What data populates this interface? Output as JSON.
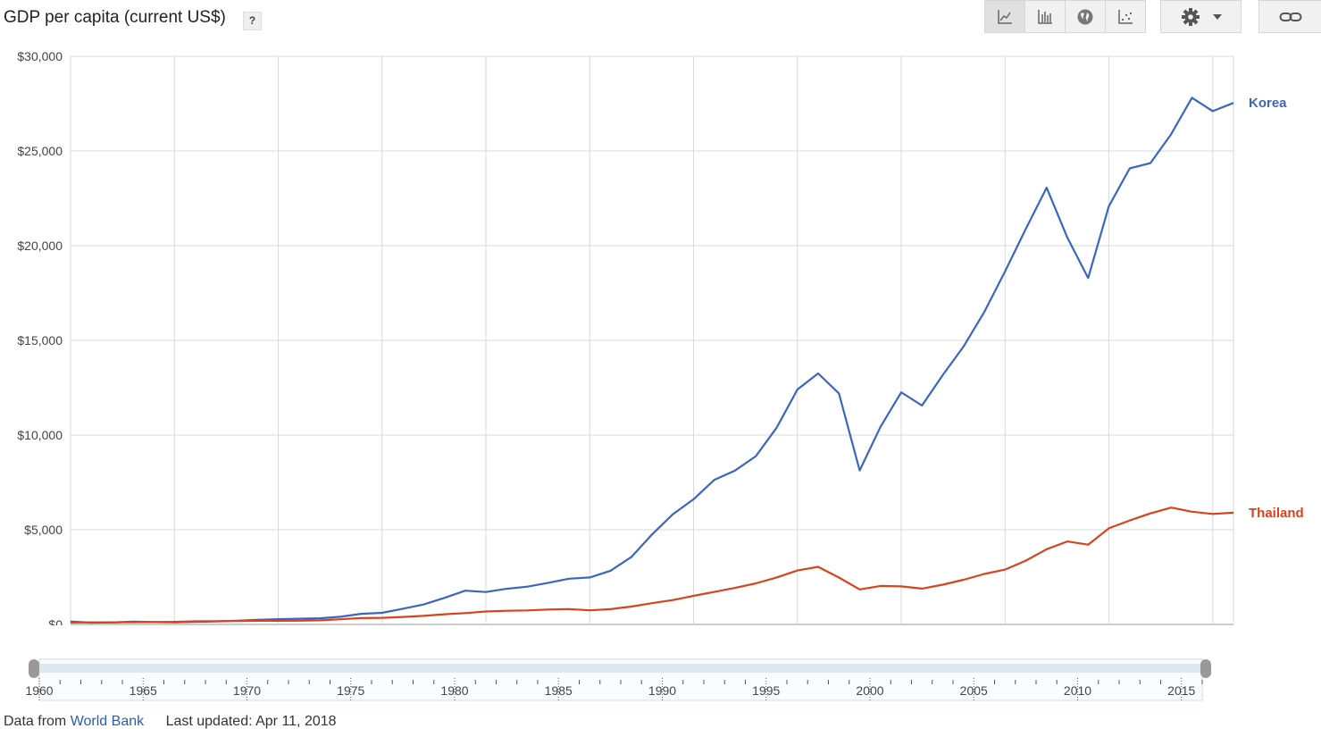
{
  "header": {
    "title": "GDP per capita (current US$)",
    "help": "?"
  },
  "toolbar": {
    "chart_type_buttons": [
      {
        "icon": "line-chart-icon",
        "active": true
      },
      {
        "icon": "bar-chart-icon",
        "active": false
      },
      {
        "icon": "globe-icon",
        "active": false
      },
      {
        "icon": "scatter-plot-icon",
        "active": false
      }
    ],
    "settings_icon": "gear-icon",
    "dropdown_icon": "caret-down-icon",
    "link_icon": "link-icon"
  },
  "chart_data": {
    "type": "line",
    "title": "GDP per capita (current US$)",
    "x": [
      1960,
      1961,
      1962,
      1963,
      1964,
      1965,
      1966,
      1967,
      1968,
      1969,
      1970,
      1971,
      1972,
      1973,
      1974,
      1975,
      1976,
      1977,
      1978,
      1979,
      1980,
      1981,
      1982,
      1983,
      1984,
      1985,
      1986,
      1987,
      1988,
      1989,
      1990,
      1991,
      1992,
      1993,
      1994,
      1995,
      1996,
      1997,
      1998,
      1999,
      2000,
      2001,
      2002,
      2003,
      2004,
      2005,
      2006,
      2007,
      2008,
      2009,
      2010,
      2011,
      2012,
      2013,
      2014,
      2015,
      2016
    ],
    "series": [
      {
        "name": "Korea",
        "color": "#3a66bf",
        "values": [
          158,
          94,
          106,
          146,
          124,
          108,
          133,
          161,
          198,
          243,
          279,
          301,
          324,
          406,
          563,
          615,
          831,
          1051,
          1399,
          1784,
          1711,
          1883,
          1993,
          2199,
          2413,
          2482,
          2835,
          3555,
          4749,
          5817,
          6610,
          7637,
          8127,
          8885,
          10385,
          12404,
          13255,
          12197,
          8134,
          10432,
          12257,
          11561,
          13166,
          14673,
          16496,
          18640,
          20888,
          23061,
          20431,
          18292,
          22087,
          24080,
          24359,
          25890,
          27811,
          27105,
          27539
        ]
      },
      {
        "name": "Thailand",
        "color": "#d6431e",
        "values": [
          101,
          107,
          113,
          117,
          125,
          138,
          163,
          171,
          180,
          193,
          192,
          196,
          215,
          275,
          335,
          351,
          398,
          452,
          536,
          597,
          683,
          720,
          741,
          788,
          813,
          746,
          806,
          943,
          1121,
          1286,
          1509,
          1718,
          1928,
          2172,
          2480,
          2850,
          3044,
          2475,
          1847,
          2033,
          2008,
          1890,
          2097,
          2360,
          2663,
          2894,
          3369,
          3974,
          4380,
          4213,
          5076,
          5491,
          5861,
          6169,
          5952,
          5837,
          5902
        ]
      }
    ],
    "xlim": [
      1960,
      2016
    ],
    "ylim": [
      0,
      30000
    ],
    "y_ticks": [
      0,
      5000,
      10000,
      15000,
      20000,
      25000,
      30000
    ],
    "y_tick_labels": [
      "$0",
      "$5,000",
      "$10,000",
      "$15,000",
      "$20,000",
      "$25,000",
      "$30,000"
    ],
    "x_ticks": [
      1965,
      1970,
      1975,
      1980,
      1985,
      1990,
      1995,
      2000,
      2005,
      2010,
      2015
    ],
    "x_tick_labels": [
      "1965",
      "1970",
      "1975",
      "1980",
      "1985",
      "1990",
      "1995",
      "2000",
      "2005",
      "2010",
      "2015"
    ],
    "grid": true,
    "legend": "inline at line ends (right)",
    "xlabel": "",
    "ylabel": ""
  },
  "range_slider": {
    "labels": [
      "1960",
      "1965",
      "1970",
      "1975",
      "1980",
      "1985",
      "1990",
      "1995",
      "2000",
      "2005",
      "2010",
      "2015"
    ],
    "start": 1960,
    "end": 2016
  },
  "footer": {
    "prefix": "Data from",
    "source": "World Bank",
    "updated": "Last updated: Apr 11, 2018"
  }
}
